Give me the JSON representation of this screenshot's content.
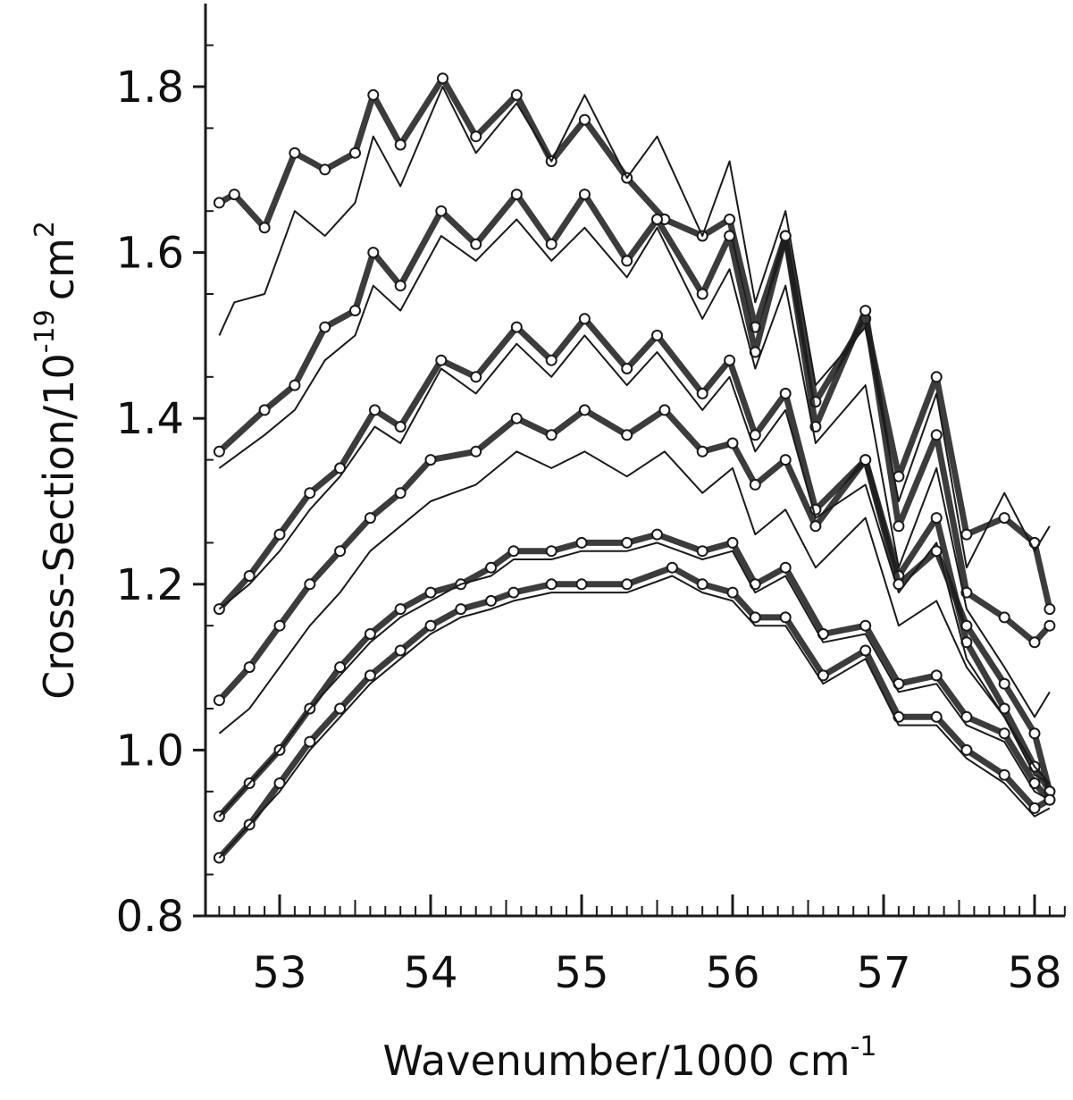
{
  "chart_data": {
    "type": "line",
    "xlabel": "Wavenumber/1000 cm",
    "xlabel_sup": "-1",
    "ylabel": "Cross-Section/10",
    "ylabel_sup": "-19",
    "ylabel_unit": "cm",
    "ylabel_unit_sup": "2",
    "xlim": [
      52.6,
      58.15
    ],
    "ylim": [
      0.8,
      1.9
    ],
    "x_ticks": [
      {
        "value": 53,
        "label": "53"
      },
      {
        "value": 54,
        "label": "54"
      },
      {
        "value": 55,
        "label": "55"
      },
      {
        "value": 56,
        "label": "56"
      },
      {
        "value": 57,
        "label": "57"
      },
      {
        "value": 58,
        "label": "58"
      }
    ],
    "y_ticks": [
      {
        "value": 0.8,
        "label": "0.8"
      },
      {
        "value": 1.0,
        "label": "1.0"
      },
      {
        "value": 1.2,
        "label": "1.2"
      },
      {
        "value": 1.4,
        "label": "1.4"
      },
      {
        "value": 1.6,
        "label": "1.6"
      },
      {
        "value": 1.8,
        "label": "1.8"
      }
    ],
    "grid": false,
    "legend": "none",
    "ink_color": "#1a1a1a",
    "series": [
      {
        "style": "markers",
        "x": [
          52.6,
          52.7,
          52.9,
          53.1,
          53.3,
          53.5,
          53.62,
          53.8,
          54.08,
          54.3,
          54.57,
          54.8,
          55.02,
          55.3,
          55.55,
          55.8,
          55.98,
          56.15,
          56.35,
          56.55,
          56.88,
          57.1,
          57.35,
          57.55,
          57.8,
          58.0,
          58.1
        ],
        "y": [
          1.66,
          1.67,
          1.63,
          1.72,
          1.7,
          1.72,
          1.79,
          1.73,
          1.81,
          1.74,
          1.79,
          1.71,
          1.76,
          1.69,
          1.64,
          1.62,
          1.64,
          1.51,
          1.62,
          1.42,
          1.52,
          1.33,
          1.45,
          1.26,
          1.28,
          1.25,
          1.17
        ]
      },
      {
        "style": "line",
        "x": [
          52.6,
          52.7,
          52.9,
          53.1,
          53.3,
          53.5,
          53.62,
          53.8,
          54.08,
          54.3,
          54.57,
          54.8,
          55.02,
          55.3,
          55.5,
          55.8,
          55.98,
          56.15,
          56.35,
          56.55,
          56.88,
          57.1,
          57.35,
          57.55,
          57.8,
          58.0,
          58.1
        ],
        "y": [
          1.5,
          1.54,
          1.55,
          1.65,
          1.62,
          1.66,
          1.74,
          1.68,
          1.8,
          1.72,
          1.78,
          1.71,
          1.79,
          1.69,
          1.74,
          1.62,
          1.71,
          1.54,
          1.65,
          1.44,
          1.51,
          1.3,
          1.43,
          1.22,
          1.31,
          1.24,
          1.27
        ]
      },
      {
        "style": "markers",
        "x": [
          52.6,
          52.9,
          53.1,
          53.3,
          53.5,
          53.62,
          53.8,
          54.07,
          54.3,
          54.57,
          54.8,
          55.02,
          55.3,
          55.5,
          55.8,
          55.98,
          56.15,
          56.35,
          56.55,
          56.88,
          57.1,
          57.35,
          57.55,
          57.8,
          58.0,
          58.1
        ],
        "y": [
          1.36,
          1.41,
          1.44,
          1.51,
          1.53,
          1.6,
          1.56,
          1.65,
          1.61,
          1.67,
          1.61,
          1.67,
          1.59,
          1.64,
          1.55,
          1.62,
          1.48,
          1.62,
          1.39,
          1.53,
          1.27,
          1.38,
          1.19,
          1.16,
          1.13,
          1.15
        ]
      },
      {
        "style": "line",
        "x": [
          52.6,
          52.9,
          53.1,
          53.3,
          53.5,
          53.62,
          53.8,
          54.07,
          54.3,
          54.57,
          54.8,
          55.02,
          55.3,
          55.5,
          55.8,
          55.98,
          56.15,
          56.35,
          56.55,
          56.88,
          57.1,
          57.35,
          57.55,
          57.8,
          58.0,
          58.1
        ],
        "y": [
          1.34,
          1.38,
          1.41,
          1.47,
          1.5,
          1.56,
          1.53,
          1.62,
          1.59,
          1.64,
          1.59,
          1.63,
          1.57,
          1.63,
          1.52,
          1.58,
          1.46,
          1.56,
          1.37,
          1.44,
          1.22,
          1.34,
          1.17,
          1.1,
          1.04,
          1.07
        ]
      },
      {
        "style": "markers",
        "x": [
          52.6,
          52.8,
          53.0,
          53.2,
          53.4,
          53.63,
          53.8,
          54.07,
          54.3,
          54.57,
          54.8,
          55.02,
          55.3,
          55.5,
          55.8,
          55.98,
          56.15,
          56.35,
          56.55,
          56.88,
          57.1,
          57.35,
          57.55,
          57.8,
          58.0,
          58.1
        ],
        "y": [
          1.17,
          1.21,
          1.26,
          1.31,
          1.34,
          1.41,
          1.39,
          1.47,
          1.45,
          1.51,
          1.47,
          1.52,
          1.46,
          1.5,
          1.43,
          1.47,
          1.38,
          1.43,
          1.29,
          1.35,
          1.21,
          1.28,
          1.13,
          1.05,
          0.98,
          0.95
        ]
      },
      {
        "style": "line",
        "x": [
          52.6,
          52.8,
          53.0,
          53.2,
          53.4,
          53.63,
          53.8,
          54.07,
          54.3,
          54.57,
          54.8,
          55.02,
          55.3,
          55.5,
          55.8,
          55.98,
          56.15,
          56.35,
          56.55,
          56.88,
          57.1,
          57.35,
          57.55,
          57.8,
          58.0,
          58.1
        ],
        "y": [
          1.17,
          1.2,
          1.24,
          1.29,
          1.33,
          1.39,
          1.37,
          1.46,
          1.43,
          1.49,
          1.45,
          1.5,
          1.44,
          1.48,
          1.41,
          1.45,
          1.36,
          1.41,
          1.28,
          1.32,
          1.19,
          1.25,
          1.11,
          1.04,
          0.97,
          0.96
        ]
      },
      {
        "style": "markers",
        "x": [
          52.6,
          52.8,
          53.0,
          53.2,
          53.4,
          53.6,
          53.8,
          54.0,
          54.3,
          54.57,
          54.8,
          55.02,
          55.3,
          55.55,
          55.8,
          56.0,
          56.15,
          56.35,
          56.55,
          56.88,
          57.1,
          57.35,
          57.55,
          57.8,
          58.0,
          58.1
        ],
        "y": [
          1.06,
          1.1,
          1.15,
          1.2,
          1.24,
          1.28,
          1.31,
          1.35,
          1.36,
          1.4,
          1.38,
          1.41,
          1.38,
          1.41,
          1.36,
          1.37,
          1.32,
          1.35,
          1.27,
          1.35,
          1.2,
          1.24,
          1.15,
          1.08,
          1.02,
          0.95
        ]
      },
      {
        "style": "line",
        "x": [
          52.6,
          52.8,
          53.0,
          53.2,
          53.4,
          53.6,
          53.8,
          54.0,
          54.3,
          54.57,
          54.8,
          55.02,
          55.3,
          55.55,
          55.8,
          56.0,
          56.15,
          56.35,
          56.55,
          56.88,
          57.1,
          57.35,
          57.55,
          57.8,
          58.0,
          58.1
        ],
        "y": [
          1.02,
          1.05,
          1.1,
          1.15,
          1.19,
          1.24,
          1.27,
          1.3,
          1.32,
          1.36,
          1.34,
          1.36,
          1.33,
          1.36,
          1.31,
          1.34,
          1.26,
          1.29,
          1.22,
          1.28,
          1.15,
          1.18,
          1.1,
          1.04,
          0.98,
          0.96
        ]
      },
      {
        "style": "markers",
        "x": [
          52.6,
          52.8,
          53.0,
          53.2,
          53.4,
          53.6,
          53.8,
          54.0,
          54.2,
          54.4,
          54.55,
          54.8,
          55.0,
          55.3,
          55.5,
          55.8,
          56.0,
          56.15,
          56.35,
          56.6,
          56.88,
          57.1,
          57.35,
          57.55,
          57.8,
          58.0,
          58.1
        ],
        "y": [
          0.92,
          0.96,
          1.0,
          1.05,
          1.1,
          1.14,
          1.17,
          1.19,
          1.2,
          1.22,
          1.24,
          1.24,
          1.25,
          1.25,
          1.26,
          1.24,
          1.25,
          1.2,
          1.22,
          1.14,
          1.15,
          1.08,
          1.09,
          1.04,
          1.02,
          0.96,
          0.94
        ]
      },
      {
        "style": "line",
        "x": [
          52.6,
          52.8,
          53.0,
          53.2,
          53.4,
          53.6,
          53.8,
          54.0,
          54.2,
          54.4,
          54.55,
          54.8,
          55.0,
          55.3,
          55.5,
          55.8,
          56.0,
          56.15,
          56.35,
          56.6,
          56.88,
          57.1,
          57.35,
          57.55,
          57.8,
          58.0,
          58.1
        ],
        "y": [
          0.92,
          0.96,
          1.0,
          1.05,
          1.09,
          1.13,
          1.16,
          1.18,
          1.2,
          1.21,
          1.23,
          1.23,
          1.24,
          1.24,
          1.25,
          1.23,
          1.24,
          1.19,
          1.21,
          1.13,
          1.14,
          1.07,
          1.08,
          1.03,
          1.01,
          0.95,
          0.94
        ]
      },
      {
        "style": "markers",
        "x": [
          52.6,
          52.8,
          53.0,
          53.2,
          53.4,
          53.6,
          53.8,
          54.0,
          54.2,
          54.4,
          54.55,
          54.8,
          55.0,
          55.3,
          55.6,
          55.8,
          56.0,
          56.15,
          56.35,
          56.6,
          56.88,
          57.1,
          57.35,
          57.55,
          57.8,
          58.0,
          58.1
        ],
        "y": [
          0.87,
          0.91,
          0.96,
          1.01,
          1.05,
          1.09,
          1.12,
          1.15,
          1.17,
          1.18,
          1.19,
          1.2,
          1.2,
          1.2,
          1.22,
          1.2,
          1.19,
          1.16,
          1.16,
          1.09,
          1.12,
          1.04,
          1.04,
          1.0,
          0.97,
          0.93,
          0.94
        ]
      },
      {
        "style": "line",
        "x": [
          52.6,
          52.8,
          53.0,
          53.2,
          53.4,
          53.6,
          53.8,
          54.0,
          54.2,
          54.4,
          54.55,
          54.8,
          55.0,
          55.3,
          55.6,
          55.8,
          56.0,
          56.15,
          56.35,
          56.6,
          56.88,
          57.1,
          57.35,
          57.55,
          57.8,
          58.0,
          58.1
        ],
        "y": [
          0.87,
          0.91,
          0.95,
          1.0,
          1.04,
          1.08,
          1.11,
          1.14,
          1.16,
          1.17,
          1.18,
          1.19,
          1.19,
          1.19,
          1.21,
          1.19,
          1.18,
          1.15,
          1.15,
          1.08,
          1.11,
          1.03,
          1.03,
          0.99,
          0.96,
          0.92,
          0.93
        ]
      }
    ]
  }
}
